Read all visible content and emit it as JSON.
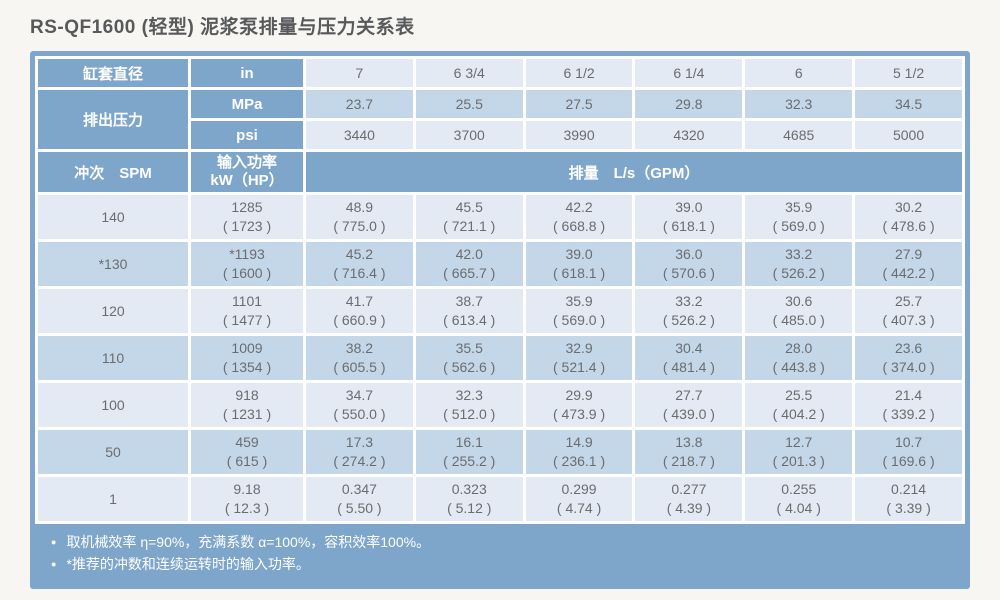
{
  "title": "RS-QF1600 (轻型) 泥浆泵排量与压力关系表",
  "colors": {
    "header_blue": "#7ea6cb",
    "row_light": "#e3eaf3",
    "row_dark": "#c4d7e8",
    "cell_text": "#6a6d70",
    "title_text": "#58595b"
  },
  "table": {
    "header": {
      "liner_diameter_label": "缸套直径",
      "in_unit": "in",
      "liner_sizes": [
        "7",
        "6 3/4",
        "6 1/2",
        "6 1/4",
        "6",
        "5 1/2"
      ],
      "discharge_pressure_label": "排出压力",
      "mpa_unit": "MPa",
      "mpa_values": [
        "23.7",
        "25.5",
        "27.5",
        "29.8",
        "32.3",
        "34.5"
      ],
      "psi_unit": "psi",
      "psi_values": [
        "3440",
        "3700",
        "3990",
        "4320",
        "4685",
        "5000"
      ],
      "spm_label": "冲次　SPM",
      "power_label_line1": "输入功率",
      "power_label_line2": "kW（HP）",
      "flow_label": "排量　L/s（GPM）"
    },
    "rows": [
      {
        "spm": "140",
        "cells": [
          [
            "1285",
            "( 1723 )"
          ],
          [
            "48.9",
            "( 775.0 )"
          ],
          [
            "45.5",
            "( 721.1 )"
          ],
          [
            "42.2",
            "( 668.8 )"
          ],
          [
            "39.0",
            "( 618.1 )"
          ],
          [
            "35.9",
            "( 569.0 )"
          ],
          [
            "30.2",
            "( 478.6 )"
          ]
        ]
      },
      {
        "spm": "*130",
        "cells": [
          [
            "*1193",
            "( 1600 )"
          ],
          [
            "45.2",
            "( 716.4 )"
          ],
          [
            "42.0",
            "( 665.7 )"
          ],
          [
            "39.0",
            "( 618.1 )"
          ],
          [
            "36.0",
            "( 570.6 )"
          ],
          [
            "33.2",
            "( 526.2 )"
          ],
          [
            "27.9",
            "( 442.2 )"
          ]
        ]
      },
      {
        "spm": "120",
        "cells": [
          [
            "1101",
            "( 1477 )"
          ],
          [
            "41.7",
            "( 660.9 )"
          ],
          [
            "38.7",
            "( 613.4 )"
          ],
          [
            "35.9",
            "( 569.0 )"
          ],
          [
            "33.2",
            "( 526.2 )"
          ],
          [
            "30.6",
            "( 485.0 )"
          ],
          [
            "25.7",
            "( 407.3 )"
          ]
        ]
      },
      {
        "spm": "110",
        "cells": [
          [
            "1009",
            "( 1354 )"
          ],
          [
            "38.2",
            "( 605.5 )"
          ],
          [
            "35.5",
            "( 562.6 )"
          ],
          [
            "32.9",
            "( 521.4 )"
          ],
          [
            "30.4",
            "( 481.4 )"
          ],
          [
            "28.0",
            "( 443.8 )"
          ],
          [
            "23.6",
            "( 374.0 )"
          ]
        ]
      },
      {
        "spm": "100",
        "cells": [
          [
            "918",
            "( 1231 )"
          ],
          [
            "34.7",
            "( 550.0 )"
          ],
          [
            "32.3",
            "( 512.0 )"
          ],
          [
            "29.9",
            "( 473.9 )"
          ],
          [
            "27.7",
            "( 439.0 )"
          ],
          [
            "25.5",
            "( 404.2 )"
          ],
          [
            "21.4",
            "( 339.2 )"
          ]
        ]
      },
      {
        "spm": "50",
        "cells": [
          [
            "459",
            "( 615 )"
          ],
          [
            "17.3",
            "( 274.2 )"
          ],
          [
            "16.1",
            "( 255.2 )"
          ],
          [
            "14.9",
            "( 236.1 )"
          ],
          [
            "13.8",
            "( 218.7 )"
          ],
          [
            "12.7",
            "( 201.3 )"
          ],
          [
            "10.7",
            "( 169.6 )"
          ]
        ]
      },
      {
        "spm": "1",
        "cells": [
          [
            "9.18",
            "( 12.3 )"
          ],
          [
            "0.347",
            "( 5.50 )"
          ],
          [
            "0.323",
            "( 5.12 )"
          ],
          [
            "0.299",
            "( 4.74 )"
          ],
          [
            "0.277",
            "( 4.39 )"
          ],
          [
            "0.255",
            "( 4.04 )"
          ],
          [
            "0.214",
            "( 3.39 )"
          ]
        ]
      }
    ]
  },
  "notes": [
    "取机械效率 η=90%，充满系数 α=100%，容积效率100%。",
    "*推荐的冲数和连续运转时的输入功率。"
  ]
}
